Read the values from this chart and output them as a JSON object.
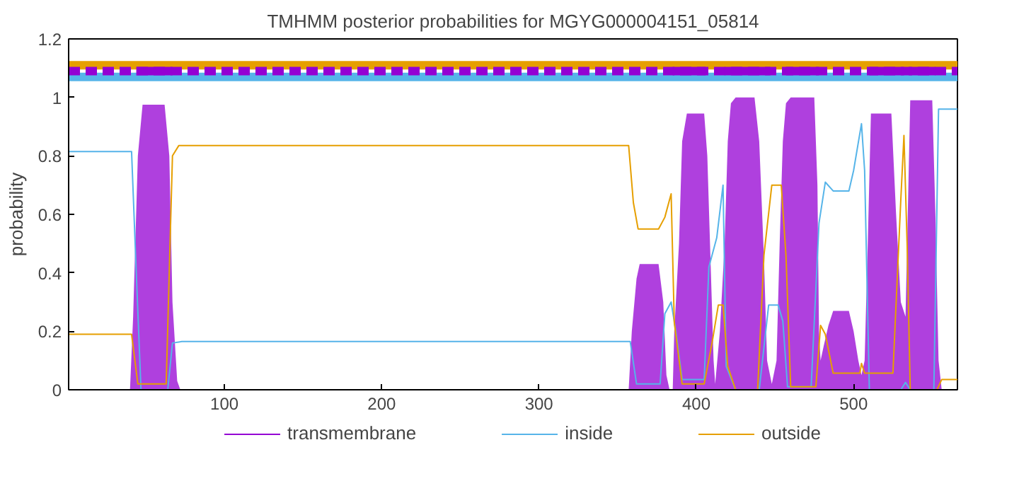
{
  "chart_data": {
    "type": "line",
    "title": "TMHMM posterior probabilities for MGYG000004151_05814",
    "ylabel": "probability",
    "xlim": [
      1,
      566
    ],
    "ylim": [
      0,
      1.2
    ],
    "xticks": [
      100,
      200,
      300,
      400,
      500
    ],
    "yticks": [
      0,
      0.2,
      0.4,
      0.6,
      0.8,
      {
        "value": 1,
        "label": "1"
      },
      1.2
    ],
    "grid": false,
    "legend": "bottom",
    "series": [
      {
        "name": "transmembrane",
        "type": "area",
        "color": "#9400d3",
        "x": [
          1,
          40,
          42,
          45,
          48,
          62,
          65,
          67,
          70,
          72,
          355,
          357,
          359,
          362,
          364,
          376,
          379,
          381,
          383,
          385,
          386,
          389,
          391,
          394,
          405,
          407,
          409,
          411,
          412,
          415,
          418,
          420,
          422,
          425,
          437,
          440,
          443,
          445,
          448,
          451,
          453,
          455,
          457,
          460,
          475,
          477,
          478,
          479,
          481,
          484,
          487,
          497,
          500,
          503,
          505,
          507,
          509,
          511,
          524,
          527,
          530,
          533,
          536,
          550,
          552,
          554,
          556,
          566
        ],
        "values": [
          0,
          0,
          0.25,
          0.8,
          0.975,
          0.975,
          0.8,
          0.3,
          0.03,
          0,
          0,
          0,
          0.2,
          0.38,
          0.43,
          0.43,
          0.3,
          0.05,
          0,
          0,
          0.2,
          0.5,
          0.85,
          0.945,
          0.945,
          0.8,
          0.45,
          0.1,
          0.02,
          0.2,
          0.5,
          0.85,
          0.98,
          1.0,
          1.0,
          0.85,
          0.45,
          0.1,
          0.02,
          0.1,
          0.5,
          0.85,
          0.98,
          1.0,
          1.0,
          0.7,
          0.2,
          0.1,
          0.15,
          0.22,
          0.27,
          0.27,
          0.2,
          0.1,
          0.05,
          0.1,
          0.5,
          0.945,
          0.945,
          0.6,
          0.3,
          0.25,
          0.99,
          0.99,
          0.6,
          0.1,
          0,
          0
        ]
      },
      {
        "name": "inside",
        "type": "line",
        "color": "#56b4e9",
        "x": [
          1,
          41,
          44,
          47,
          64,
          67,
          73,
          358,
          362,
          377,
          380,
          384,
          387,
          391,
          405,
          408,
          413,
          417,
          419,
          425,
          440,
          446,
          452,
          455,
          458,
          473,
          478,
          482,
          487,
          497,
          500,
          505,
          507,
          510,
          530,
          533,
          536,
          551,
          554,
          566
        ],
        "values": [
          0.815,
          0.815,
          0.4,
          0,
          0,
          0.16,
          0.165,
          0.165,
          0.02,
          0.02,
          0.26,
          0.3,
          0.2,
          0.035,
          0.035,
          0.42,
          0.52,
          0.7,
          0.08,
          0,
          0,
          0.29,
          0.29,
          0.235,
          0.01,
          0.01,
          0.57,
          0.71,
          0.68,
          0.68,
          0.75,
          0.91,
          0.75,
          0,
          0,
          0.025,
          0,
          0,
          0.96,
          0.96
        ]
      },
      {
        "name": "outside",
        "type": "line",
        "color": "#e69f00",
        "x": [
          1,
          41,
          45,
          63,
          67,
          71,
          357,
          360,
          363,
          376,
          380,
          384,
          386,
          391,
          405,
          410,
          414,
          417,
          420,
          425,
          439,
          443,
          448,
          454,
          457,
          460,
          476,
          479,
          482,
          487,
          504,
          505,
          507,
          525,
          530,
          532,
          534,
          536,
          553,
          556,
          566
        ],
        "values": [
          0.19,
          0.19,
          0.02,
          0.02,
          0.8,
          0.835,
          0.835,
          0.64,
          0.55,
          0.55,
          0.59,
          0.67,
          0.23,
          0.02,
          0.02,
          0.16,
          0.29,
          0.29,
          0.08,
          0,
          0,
          0.46,
          0.7,
          0.7,
          0.46,
          0.01,
          0.01,
          0.22,
          0.19,
          0.057,
          0.057,
          0.09,
          0.057,
          0.057,
          0.65,
          0.87,
          0.5,
          0,
          0,
          0.035,
          0.035
        ]
      },
      {
        "type": "line",
        "color": "#e69f00",
        "x": [
          1,
          566
        ],
        "values": [
          1.11,
          1.11
        ]
      },
      {
        "type": "line",
        "color": "#56b4e9",
        "x": [
          1,
          566
        ],
        "values": [
          1.07,
          1.07
        ]
      },
      {
        "type": "line",
        "line_style": "dashed",
        "color": "#9400d3",
        "x": [
          1,
          566
        ],
        "values": [
          1.09,
          1.09
        ]
      },
      {
        "type": "line",
        "color": "#9400d3",
        "x": [
          44,
          67,
          null,
          385,
          406,
          null,
          418,
          447,
          null,
          457,
          478,
          null,
          510,
          532,
          null,
          535,
          552
        ],
        "values": [
          1.09,
          1.09,
          null,
          1.09,
          1.09,
          null,
          1.09,
          1.09,
          null,
          1.09,
          1.09,
          null,
          1.09,
          1.09,
          null,
          1.09,
          1.09
        ]
      }
    ]
  }
}
